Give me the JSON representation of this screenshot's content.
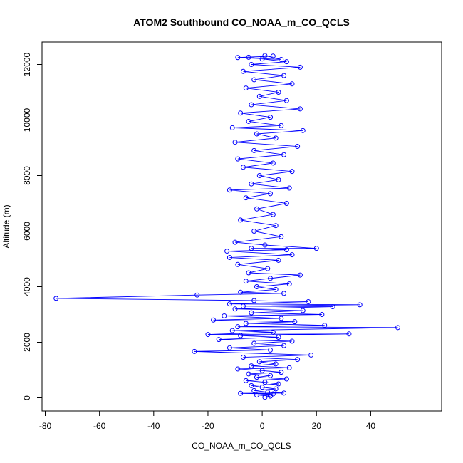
{
  "chart_data": {
    "type": "scatter",
    "title": "ATOM2 Southbound CO_NOAA_m_CO_QCLS",
    "xlabel": "CO_NOAA_m_CO_QCLS",
    "ylabel": "Altitude (m)",
    "xlim": [
      -80,
      50
    ],
    "ylim": [
      0,
      12000
    ],
    "x_ticks": [
      -80,
      -60,
      -40,
      -20,
      0,
      20,
      40
    ],
    "y_ticks": [
      0,
      2000,
      4000,
      6000,
      8000,
      10000,
      12000
    ],
    "grid": false,
    "legend": "none",
    "colors": {
      "series": "#0000ff",
      "frame": "#000000",
      "background": "#ffffff"
    },
    "series": [
      {
        "marker": "open-circle",
        "connected": true,
        "points": [
          [
            1,
            20
          ],
          [
            3,
            60
          ],
          [
            -2,
            100
          ],
          [
            4,
            140
          ],
          [
            -8,
            160
          ],
          [
            8,
            170
          ],
          [
            2,
            200
          ],
          [
            -3,
            260
          ],
          [
            5,
            320
          ],
          [
            0,
            380
          ],
          [
            -4,
            440
          ],
          [
            6,
            500
          ],
          [
            1,
            560
          ],
          [
            -6,
            620
          ],
          [
            9,
            680
          ],
          [
            -2,
            740
          ],
          [
            3,
            800
          ],
          [
            -5,
            860
          ],
          [
            7,
            920
          ],
          [
            0,
            980
          ],
          [
            -9,
            1040
          ],
          [
            10,
            1080
          ],
          [
            -4,
            1150
          ],
          [
            5,
            1220
          ],
          [
            -1,
            1300
          ],
          [
            13,
            1380
          ],
          [
            -7,
            1460
          ],
          [
            18,
            1540
          ],
          [
            -25,
            1670
          ],
          [
            3,
            1720
          ],
          [
            -12,
            1800
          ],
          [
            8,
            1880
          ],
          [
            -3,
            1960
          ],
          [
            11,
            2040
          ],
          [
            -16,
            2100
          ],
          [
            6,
            2180
          ],
          [
            -8,
            2240
          ],
          [
            32,
            2300
          ],
          [
            -20,
            2280
          ],
          [
            4,
            2360
          ],
          [
            -11,
            2420
          ],
          [
            50,
            2530
          ],
          [
            -9,
            2560
          ],
          [
            23,
            2610
          ],
          [
            -6,
            2680
          ],
          [
            12,
            2740
          ],
          [
            -18,
            2800
          ],
          [
            7,
            2860
          ],
          [
            -14,
            2950
          ],
          [
            22,
            3000
          ],
          [
            -4,
            3060
          ],
          [
            15,
            3140
          ],
          [
            -10,
            3200
          ],
          [
            26,
            3280
          ],
          [
            -7,
            3300
          ],
          [
            36,
            3350
          ],
          [
            -12,
            3380
          ],
          [
            17,
            3460
          ],
          [
            -3,
            3500
          ],
          [
            -76,
            3580
          ],
          [
            -24,
            3700
          ],
          [
            8,
            3760
          ],
          [
            -8,
            3800
          ],
          [
            5,
            3900
          ],
          [
            -2,
            4000
          ],
          [
            10,
            4100
          ],
          [
            -6,
            4200
          ],
          [
            3,
            4300
          ],
          [
            14,
            4420
          ],
          [
            -5,
            4500
          ],
          [
            2,
            4650
          ],
          [
            -9,
            4800
          ],
          [
            6,
            4950
          ],
          [
            -12,
            5050
          ],
          [
            11,
            5150
          ],
          [
            -13,
            5280
          ],
          [
            9,
            5330
          ],
          [
            -4,
            5380
          ],
          [
            20,
            5380
          ],
          [
            1,
            5500
          ],
          [
            -10,
            5600
          ],
          [
            7,
            5800
          ],
          [
            -3,
            6000
          ],
          [
            5,
            6200
          ],
          [
            -8,
            6400
          ],
          [
            4,
            6600
          ],
          [
            -2,
            6800
          ],
          [
            9,
            7000
          ],
          [
            -6,
            7200
          ],
          [
            3,
            7350
          ],
          [
            -12,
            7480
          ],
          [
            10,
            7550
          ],
          [
            -4,
            7700
          ],
          [
            6,
            7850
          ],
          [
            -1,
            8000
          ],
          [
            11,
            8150
          ],
          [
            -7,
            8300
          ],
          [
            4,
            8450
          ],
          [
            -9,
            8600
          ],
          [
            8,
            8750
          ],
          [
            -3,
            8900
          ],
          [
            13,
            9050
          ],
          [
            -10,
            9200
          ],
          [
            5,
            9350
          ],
          [
            -2,
            9500
          ],
          [
            15,
            9620
          ],
          [
            -11,
            9720
          ],
          [
            7,
            9800
          ],
          [
            -5,
            9950
          ],
          [
            3,
            10100
          ],
          [
            -8,
            10250
          ],
          [
            14,
            10400
          ],
          [
            -4,
            10550
          ],
          [
            9,
            10700
          ],
          [
            -1,
            10850
          ],
          [
            6,
            11000
          ],
          [
            -6,
            11150
          ],
          [
            11,
            11300
          ],
          [
            -3,
            11450
          ],
          [
            8,
            11600
          ],
          [
            -7,
            11750
          ],
          [
            14,
            11900
          ],
          [
            -4,
            12000
          ],
          [
            9,
            12100
          ],
          [
            0,
            12200
          ],
          [
            -5,
            12260
          ],
          [
            4,
            12300
          ],
          [
            -9,
            12250
          ],
          [
            7,
            12180
          ],
          [
            1,
            12320
          ]
        ]
      }
    ]
  }
}
